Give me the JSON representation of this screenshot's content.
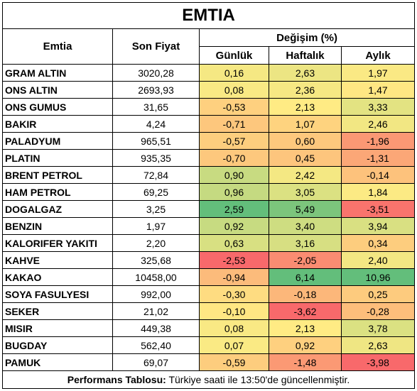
{
  "title": "EMTIA",
  "table": {
    "header": {
      "name": "Emtia",
      "price": "Son Fiyat",
      "change": "Değişim (%)",
      "periods": [
        "Günlük",
        "Haftalık",
        "Aylık"
      ]
    },
    "rows": [
      [
        "GRAM ALTIN",
        "3020,28",
        "0,16",
        "2,63",
        "1,97"
      ],
      [
        "ONS ALTIN",
        "2693,93",
        "0,08",
        "2,36",
        "1,47"
      ],
      [
        "ONS GUMUS",
        "31,65",
        "-0,53",
        "2,13",
        "3,33"
      ],
      [
        "BAKIR",
        "4,24",
        "-0,71",
        "1,07",
        "2,46"
      ],
      [
        "PALADYUM",
        "965,51",
        "-0,57",
        "0,60",
        "-1,96"
      ],
      [
        "PLATIN",
        "935,35",
        "-0,70",
        "0,45",
        "-1,31"
      ],
      [
        "BRENT PETROL",
        "72,84",
        "0,90",
        "2,42",
        "-0,14"
      ],
      [
        "HAM PETROL",
        "69,25",
        "0,96",
        "3,05",
        "1,84"
      ],
      [
        "DOGALGAZ",
        "3,25",
        "2,59",
        "5,49",
        "-3,51"
      ],
      [
        "BENZIN",
        "1,97",
        "0,92",
        "3,40",
        "3,94"
      ],
      [
        "KALORIFER YAKITI",
        "2,20",
        "0,63",
        "3,16",
        "0,34"
      ],
      [
        "KAHVE",
        "325,68",
        "-2,53",
        "-2,05",
        "2,40"
      ],
      [
        "KAKAO",
        "10458,00",
        "-0,94",
        "6,14",
        "10,96"
      ],
      [
        "SOYA FASULYESI",
        "992,00",
        "-0,30",
        "-0,18",
        "0,25"
      ],
      [
        "SEKER",
        "21,02",
        "-0,10",
        "-3,62",
        "-0,28"
      ],
      [
        "MISIR",
        "449,38",
        "0,08",
        "2,13",
        "3,78"
      ],
      [
        "BUGDAY",
        "562,40",
        "0,07",
        "0,92",
        "2,63"
      ],
      [
        "PAMUK",
        "69,07",
        "-0,59",
        "-1,48",
        "-3,98"
      ]
    ]
  },
  "footer": {
    "label": "Performans Tablosu:",
    "text": "Türkiye saati ile 13:50'de güncellenmiştir."
  }
}
